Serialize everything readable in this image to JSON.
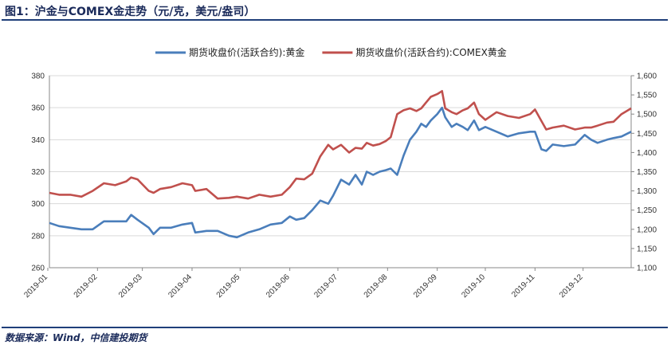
{
  "title": "图1：沪金与COMEX金走势（元/克，美元/盎司）",
  "source": "数据来源：Wind，中信建投期货",
  "chart_data": {
    "type": "line",
    "x_ticks": [
      "2019-01",
      "2019-02",
      "2019-03",
      "2019-04",
      "2019-05",
      "2019-06",
      "2019-07",
      "2019-08",
      "2019-09",
      "2019-10",
      "2019-11",
      "2019-12"
    ],
    "x_range": [
      "2019-01-02",
      "2019-12-31"
    ],
    "y_left": {
      "min": 260,
      "max": 380,
      "step": 20,
      "ticks": [
        "260",
        "280",
        "300",
        "320",
        "340",
        "360",
        "380"
      ]
    },
    "y_right": {
      "min": 1100,
      "max": 1600,
      "step": 50,
      "ticks": [
        "1,100",
        "1,150",
        "1,200",
        "1,250",
        "1,300",
        "1,350",
        "1,400",
        "1,450",
        "1,500",
        "1,550",
        "1,600"
      ]
    },
    "grid": true,
    "legend_position": "top",
    "series": [
      {
        "name": "期货收盘价(活跃合约):黄金",
        "axis": "left",
        "color": "#4a7ebb",
        "points": [
          [
            "2019-01-02",
            288
          ],
          [
            "2019-01-08",
            286
          ],
          [
            "2019-01-15",
            285
          ],
          [
            "2019-01-22",
            284
          ],
          [
            "2019-01-29",
            284
          ],
          [
            "2019-02-05",
            289
          ],
          [
            "2019-02-12",
            289
          ],
          [
            "2019-02-19",
            289
          ],
          [
            "2019-02-22",
            293
          ],
          [
            "2019-02-26",
            290
          ],
          [
            "2019-03-05",
            285
          ],
          [
            "2019-03-08",
            281
          ],
          [
            "2019-03-12",
            285
          ],
          [
            "2019-03-19",
            285
          ],
          [
            "2019-03-26",
            287
          ],
          [
            "2019-04-01",
            288
          ],
          [
            "2019-04-03",
            282
          ],
          [
            "2019-04-10",
            283
          ],
          [
            "2019-04-17",
            283
          ],
          [
            "2019-04-24",
            280
          ],
          [
            "2019-04-29",
            279
          ],
          [
            "2019-05-06",
            282
          ],
          [
            "2019-05-13",
            284
          ],
          [
            "2019-05-20",
            287
          ],
          [
            "2019-05-27",
            288
          ],
          [
            "2019-06-01",
            292
          ],
          [
            "2019-06-05",
            290
          ],
          [
            "2019-06-10",
            291
          ],
          [
            "2019-06-15",
            296
          ],
          [
            "2019-06-20",
            302
          ],
          [
            "2019-06-25",
            300
          ],
          [
            "2019-06-28",
            305
          ],
          [
            "2019-07-03",
            315
          ],
          [
            "2019-07-08",
            312
          ],
          [
            "2019-07-12",
            318
          ],
          [
            "2019-07-16",
            312
          ],
          [
            "2019-07-19",
            320
          ],
          [
            "2019-07-23",
            318
          ],
          [
            "2019-07-27",
            320
          ],
          [
            "2019-07-31",
            321
          ],
          [
            "2019-08-03",
            322
          ],
          [
            "2019-08-07",
            318
          ],
          [
            "2019-08-11",
            330
          ],
          [
            "2019-08-15",
            340
          ],
          [
            "2019-08-19",
            345
          ],
          [
            "2019-08-22",
            350
          ],
          [
            "2019-08-25",
            348
          ],
          [
            "2019-08-28",
            352
          ],
          [
            "2019-09-01",
            356
          ],
          [
            "2019-09-04",
            360
          ],
          [
            "2019-09-06",
            354
          ],
          [
            "2019-09-10",
            348
          ],
          [
            "2019-09-13",
            350
          ],
          [
            "2019-09-17",
            348
          ],
          [
            "2019-09-20",
            346
          ],
          [
            "2019-09-24",
            352
          ],
          [
            "2019-09-27",
            346
          ],
          [
            "2019-10-01",
            348
          ],
          [
            "2019-10-08",
            345
          ],
          [
            "2019-10-15",
            342
          ],
          [
            "2019-10-22",
            344
          ],
          [
            "2019-10-29",
            345
          ],
          [
            "2019-11-01",
            345
          ],
          [
            "2019-11-05",
            334
          ],
          [
            "2019-11-08",
            333
          ],
          [
            "2019-11-12",
            337
          ],
          [
            "2019-11-19",
            336
          ],
          [
            "2019-11-26",
            337
          ],
          [
            "2019-12-02",
            343
          ],
          [
            "2019-12-06",
            340
          ],
          [
            "2019-12-10",
            338
          ],
          [
            "2019-12-16",
            340
          ],
          [
            "2019-12-20",
            341
          ],
          [
            "2019-12-25",
            342
          ],
          [
            "2019-12-31",
            345
          ]
        ]
      },
      {
        "name": "期货收盘价(活跃合约):COMEX黄金",
        "axis": "right",
        "color": "#c0504d",
        "points": [
          [
            "2019-01-02",
            1295
          ],
          [
            "2019-01-08",
            1290
          ],
          [
            "2019-01-15",
            1290
          ],
          [
            "2019-01-22",
            1285
          ],
          [
            "2019-01-29",
            1300
          ],
          [
            "2019-02-05",
            1320
          ],
          [
            "2019-02-12",
            1315
          ],
          [
            "2019-02-19",
            1325
          ],
          [
            "2019-02-22",
            1335
          ],
          [
            "2019-02-26",
            1330
          ],
          [
            "2019-03-05",
            1300
          ],
          [
            "2019-03-08",
            1295
          ],
          [
            "2019-03-12",
            1305
          ],
          [
            "2019-03-19",
            1310
          ],
          [
            "2019-03-26",
            1320
          ],
          [
            "2019-04-01",
            1315
          ],
          [
            "2019-04-03",
            1300
          ],
          [
            "2019-04-10",
            1305
          ],
          [
            "2019-04-17",
            1280
          ],
          [
            "2019-04-24",
            1282
          ],
          [
            "2019-04-29",
            1285
          ],
          [
            "2019-05-06",
            1280
          ],
          [
            "2019-05-13",
            1290
          ],
          [
            "2019-05-20",
            1285
          ],
          [
            "2019-05-27",
            1290
          ],
          [
            "2019-06-01",
            1310
          ],
          [
            "2019-06-05",
            1332
          ],
          [
            "2019-06-10",
            1330
          ],
          [
            "2019-06-15",
            1345
          ],
          [
            "2019-06-20",
            1390
          ],
          [
            "2019-06-25",
            1420
          ],
          [
            "2019-06-28",
            1408
          ],
          [
            "2019-07-03",
            1420
          ],
          [
            "2019-07-08",
            1400
          ],
          [
            "2019-07-12",
            1412
          ],
          [
            "2019-07-16",
            1410
          ],
          [
            "2019-07-19",
            1425
          ],
          [
            "2019-07-23",
            1418
          ],
          [
            "2019-07-27",
            1422
          ],
          [
            "2019-07-31",
            1430
          ],
          [
            "2019-08-03",
            1440
          ],
          [
            "2019-08-07",
            1500
          ],
          [
            "2019-08-11",
            1510
          ],
          [
            "2019-08-15",
            1515
          ],
          [
            "2019-08-19",
            1508
          ],
          [
            "2019-08-22",
            1515
          ],
          [
            "2019-08-25",
            1530
          ],
          [
            "2019-08-28",
            1545
          ],
          [
            "2019-09-01",
            1552
          ],
          [
            "2019-09-04",
            1560
          ],
          [
            "2019-09-06",
            1515
          ],
          [
            "2019-09-10",
            1505
          ],
          [
            "2019-09-13",
            1500
          ],
          [
            "2019-09-17",
            1510
          ],
          [
            "2019-09-20",
            1515
          ],
          [
            "2019-09-24",
            1530
          ],
          [
            "2019-09-27",
            1500
          ],
          [
            "2019-10-01",
            1485
          ],
          [
            "2019-10-08",
            1505
          ],
          [
            "2019-10-15",
            1495
          ],
          [
            "2019-10-22",
            1490
          ],
          [
            "2019-10-29",
            1500
          ],
          [
            "2019-11-01",
            1512
          ],
          [
            "2019-11-05",
            1482
          ],
          [
            "2019-11-08",
            1460
          ],
          [
            "2019-11-12",
            1465
          ],
          [
            "2019-11-19",
            1470
          ],
          [
            "2019-11-26",
            1460
          ],
          [
            "2019-12-02",
            1465
          ],
          [
            "2019-12-06",
            1465
          ],
          [
            "2019-12-10",
            1470
          ],
          [
            "2019-12-16",
            1478
          ],
          [
            "2019-12-20",
            1480
          ],
          [
            "2019-12-25",
            1500
          ],
          [
            "2019-12-31",
            1515
          ]
        ]
      }
    ]
  }
}
